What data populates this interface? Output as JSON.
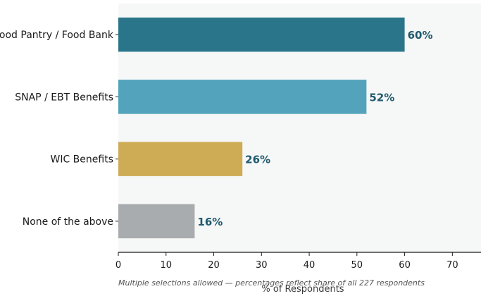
{
  "chart_data": {
    "type": "bar",
    "orientation": "horizontal",
    "categories": [
      "Food Pantry / Food Bank",
      "SNAP / EBT Benefits",
      "WIC Benefits",
      "None of the above"
    ],
    "values": [
      60,
      52,
      26,
      16
    ],
    "value_labels": [
      "60%",
      "52%",
      "26%",
      "16%"
    ],
    "colors": [
      "#2a7589",
      "#52a3bb",
      "#cdac55",
      "#a9acae"
    ],
    "xlabel": "% of Respondents",
    "xticks": [
      0,
      10,
      20,
      30,
      40,
      50,
      60,
      70
    ],
    "xlim": [
      0,
      76
    ],
    "footnote": "Multiple selections allowed — percentages reflect share of all 227 respondents",
    "grid": false,
    "plot_background": "#f6f8f7"
  }
}
